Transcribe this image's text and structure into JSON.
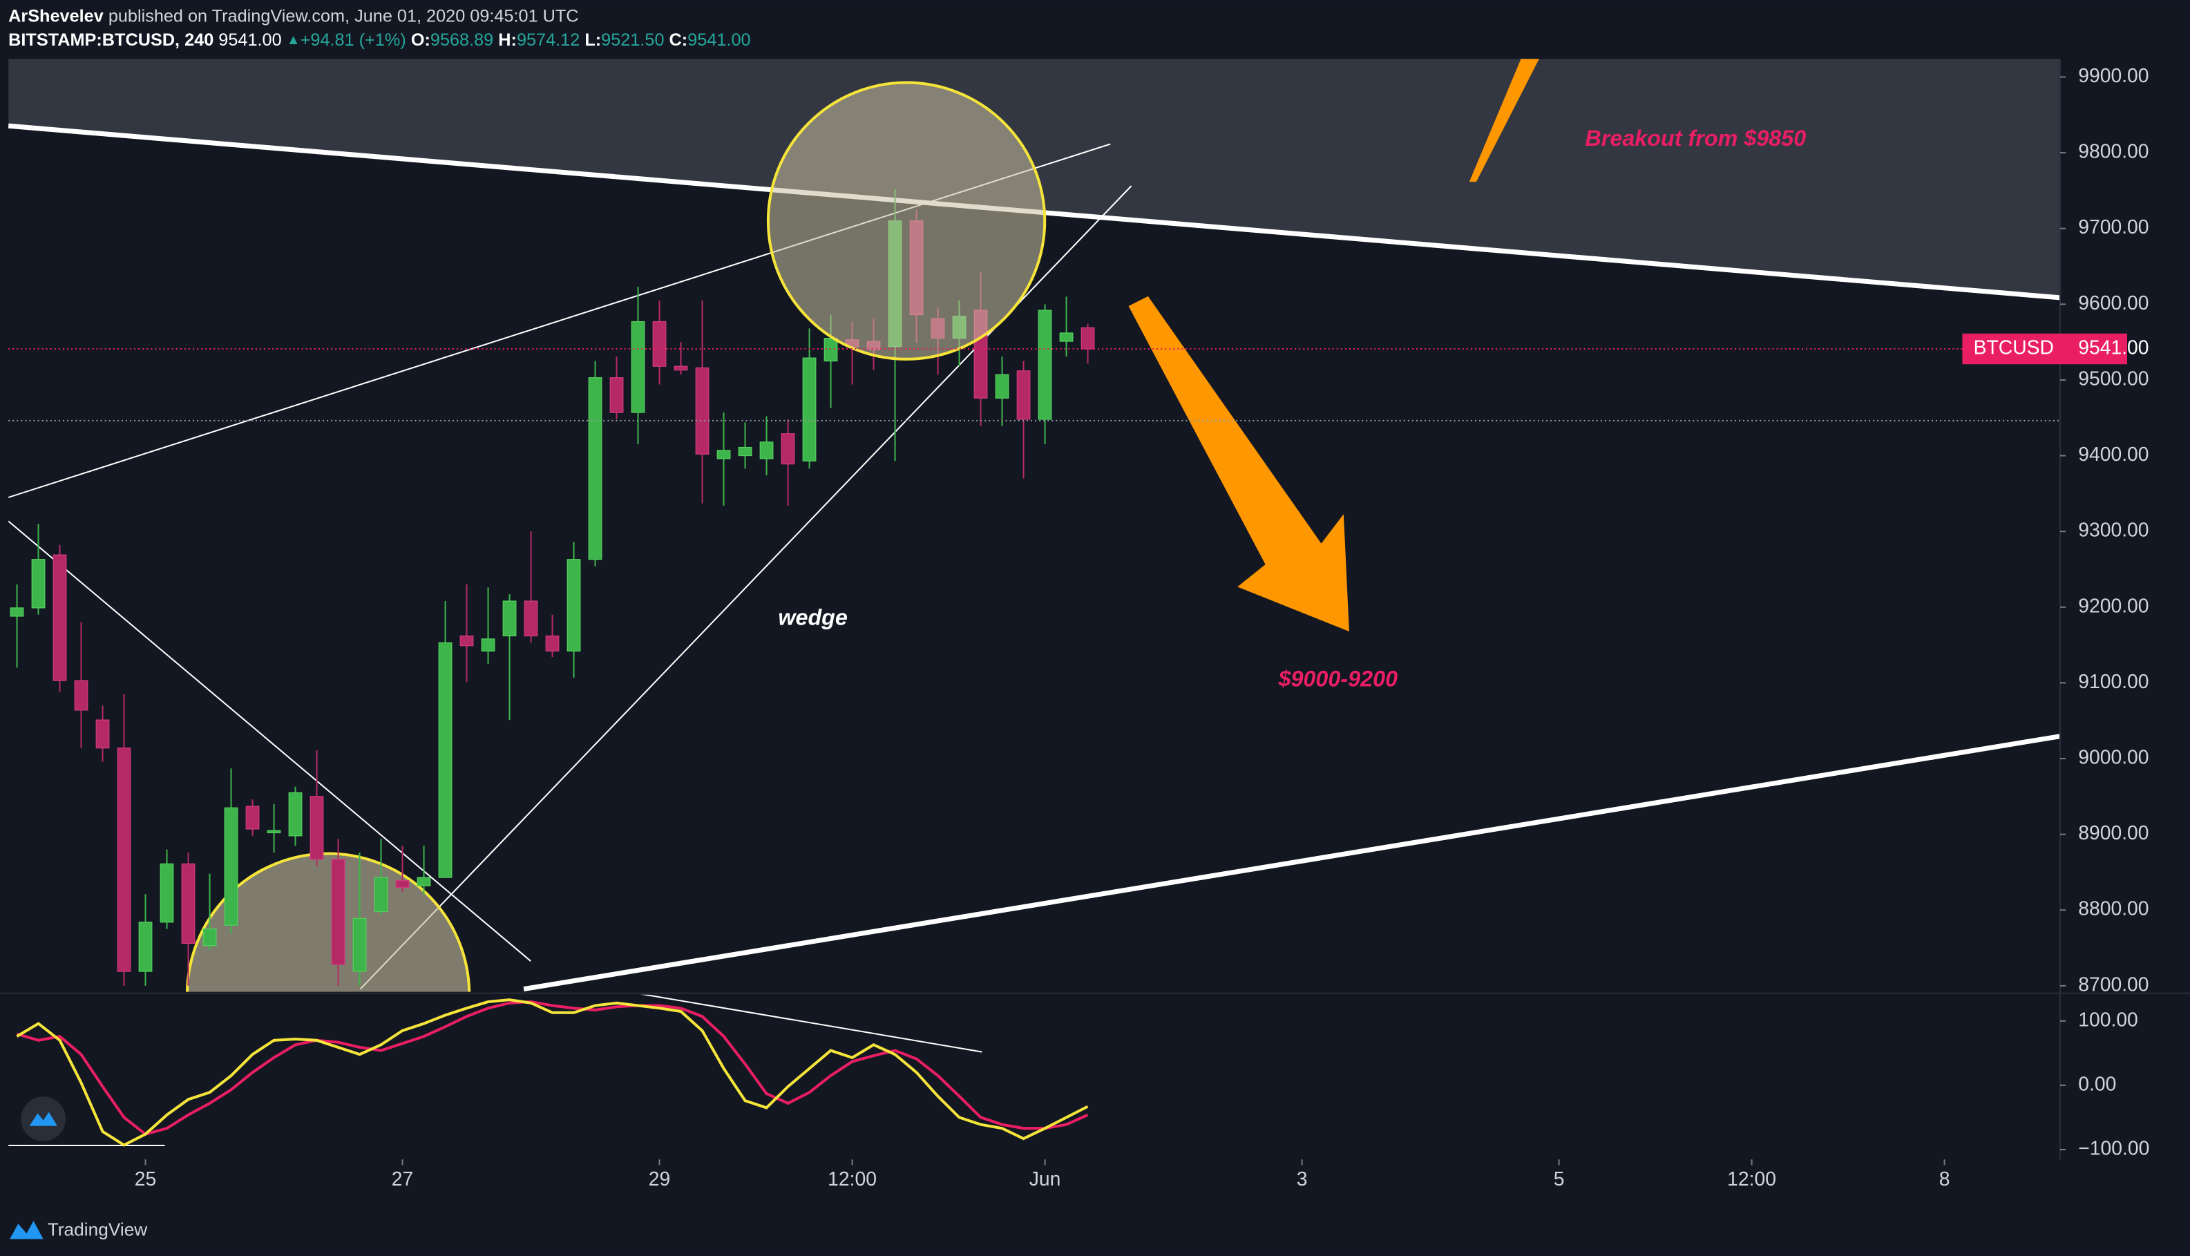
{
  "header": {
    "author": "ArShevelev",
    "published": "published on TradingView.com, June 01, 2020 09:45:01 UTC",
    "symbol": "BITSTAMP:BTCUSD, 240",
    "last": "9541.00",
    "change_arrow": "▲",
    "change": "+94.81 (+1%)",
    "ohlc": [
      {
        "label": "O:",
        "value": "9568.89"
      },
      {
        "label": "H:",
        "value": "9574.12"
      },
      {
        "label": "L:",
        "value": "9521.50"
      },
      {
        "label": "C:",
        "value": "9541.00"
      }
    ]
  },
  "chart_data": {
    "type": "candlestick",
    "up_color": "#3db54a",
    "down_color": "#b52a66",
    "open": [
      9188,
      9199,
      9269,
      9103,
      9051,
      9014,
      8719,
      8784,
      8861,
      8753,
      8780,
      8937,
      8902,
      8898,
      8950,
      8867,
      8719,
      8798,
      8839,
      8832,
      8843,
      9162,
      9142,
      9162,
      9208,
      9162,
      9142,
      9263,
      9503,
      9457,
      9577,
      9518,
      9516,
      9396,
      9400,
      9396,
      9429,
      9393,
      9525,
      9553,
      9551,
      9544,
      9710,
      9581,
      9555,
      9592,
      9476,
      9512,
      9448,
      9551,
      9568.89
    ],
    "high": [
      9230,
      9310,
      9282,
      9180,
      9070,
      9085,
      8821,
      8880,
      8876,
      8848,
      8987,
      8946,
      8940,
      8963,
      9011,
      8894,
      8876,
      8894,
      8885,
      8885,
      9208,
      9230,
      9226,
      9217,
      9300,
      9190,
      9286,
      9525,
      9531,
      9623,
      9605,
      9550,
      9605,
      9457,
      9444,
      9452,
      9448,
      9568,
      9586,
      9577,
      9581,
      9752,
      9725,
      9596,
      9605,
      9642,
      9531,
      9525,
      9600,
      9610,
      9574.12
    ],
    "low": [
      9120,
      9190,
      9088,
      9014,
      8996,
      8700,
      8700,
      8775,
      8700,
      8747,
      8769,
      8898,
      8876,
      8885,
      8858,
      8700,
      8700,
      8793,
      8824,
      8820,
      8843,
      9101,
      9125,
      9051,
      9153,
      9134,
      9107,
      9254,
      9448,
      9415,
      9494,
      9507,
      9337,
      9334,
      9383,
      9374,
      9334,
      9383,
      9463,
      9494,
      9513,
      9393,
      9549,
      9507,
      9518,
      9439,
      9439,
      9370,
      9415,
      9531,
      9521.5
    ],
    "close": [
      9199,
      9263,
      9103,
      9064,
      9014,
      8719,
      8784,
      8861,
      8756,
      8775,
      8935,
      8907,
      8905,
      8955,
      8867,
      8728,
      8789,
      8843,
      8830,
      8843,
      9153,
      9149,
      9158,
      9208,
      9162,
      9142,
      9263,
      9503,
      9457,
      9577,
      9518,
      9513,
      9402,
      9407,
      9411,
      9418,
      9389,
      9529,
      9555,
      9544,
      9540,
      9710,
      9586,
      9555,
      9584,
      9476,
      9507,
      9448,
      9592,
      9562,
      9541
    ],
    "xlim": [
      -0.4,
      95.4
    ],
    "xticks": [
      {
        "value": 6,
        "label": "25"
      },
      {
        "value": 18,
        "label": "27"
      },
      {
        "value": 30,
        "label": "29"
      },
      {
        "value": 39,
        "label": "12:00"
      },
      {
        "value": 48,
        "label": "Jun"
      },
      {
        "value": 60,
        "label": "3"
      },
      {
        "value": 72,
        "label": "5"
      },
      {
        "value": 81,
        "label": "12:00"
      },
      {
        "value": 90,
        "label": "8"
      }
    ],
    "ylim": [
      8692,
      9924
    ],
    "yticks": [
      {
        "value": 8700,
        "label": "8700.00"
      },
      {
        "value": 8800,
        "label": "8800.00"
      },
      {
        "value": 8900,
        "label": "8900.00"
      },
      {
        "value": 9000,
        "label": "9000.00"
      },
      {
        "value": 9100,
        "label": "9100.00"
      },
      {
        "value": 9200,
        "label": "9200.00"
      },
      {
        "value": 9300,
        "label": "9300.00"
      },
      {
        "value": 9400,
        "label": "9400.00"
      },
      {
        "value": 9500,
        "label": "9500.00"
      },
      {
        "value": 9600,
        "label": "9600.00"
      },
      {
        "value": 9700,
        "label": "9700.00"
      },
      {
        "value": 9800,
        "label": "9800.00"
      },
      {
        "value": 9900,
        "label": "9900.00"
      }
    ],
    "price_label": {
      "symbol": "BTCUSD",
      "value": 9541,
      "label": "9541.00",
      "color": "#e91e63"
    },
    "previous_close": 9446.19,
    "annotations": [
      "wedge",
      "Breakout from $9850",
      "$9000-9200"
    ],
    "indicator": {
      "ylim": [
        -98,
        141
      ],
      "yticks": [
        {
          "value": 100,
          "label": "100.00"
        },
        {
          "value": 0,
          "label": "0.00"
        },
        {
          "value": -100,
          "label": "−100.00"
        }
      ],
      "series": [
        {
          "color": "#f5e43a",
          "values": [
            76,
            96,
            70,
            4,
            -72,
            -93,
            -76,
            -46,
            -22,
            -11,
            15,
            48,
            70,
            72,
            70,
            59,
            48,
            63,
            85,
            96,
            109,
            120,
            130,
            133,
            128,
            113,
            113,
            124,
            128,
            124,
            120,
            115,
            85,
            26,
            -24,
            -35,
            -2,
            26,
            54,
            43,
            63,
            48,
            20,
            -17,
            -50,
            -61,
            -67,
            -83,
            -67,
            -50,
            -33
          ]
        },
        {
          "color": "#e91e63",
          "values": [
            80,
            70,
            76,
            48,
            -2,
            -50,
            -76,
            -67,
            -46,
            -28,
            -7,
            20,
            43,
            63,
            70,
            67,
            59,
            54,
            65,
            76,
            91,
            107,
            120,
            128,
            130,
            124,
            120,
            117,
            122,
            124,
            124,
            120,
            107,
            76,
            33,
            -13,
            -28,
            -11,
            15,
            37,
            46,
            54,
            41,
            15,
            -17,
            -50,
            -61,
            -67,
            -67,
            -61,
            -46
          ]
        }
      ]
    }
  },
  "footer": {
    "brand": "TradingView"
  }
}
